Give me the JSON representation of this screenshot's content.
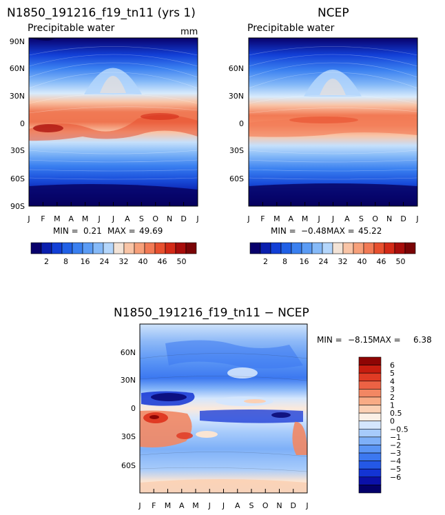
{
  "colors": {
    "seq_colorbar": [
      "#08006b",
      "#0a1fae",
      "#123fd6",
      "#2060e6",
      "#3a80f0",
      "#5b9cf5",
      "#86baf8",
      "#b4d6fb",
      "#f3e3d6",
      "#f9c4a6",
      "#f7a07a",
      "#f27a55",
      "#e8502f",
      "#d42a17",
      "#a80d0b",
      "#7a0406"
    ],
    "diff_colorbar": [
      "#04006a",
      "#0b10a8",
      "#1334d4",
      "#2458e6",
      "#3c78f0",
      "#5a95f5",
      "#7eb0f8",
      "#a7cbfb",
      "#d4e6fd",
      "#fbf0e6",
      "#fbd0b4",
      "#f8ab85",
      "#f28763",
      "#ec6244",
      "#e03b24",
      "#c71d0f",
      "#8e0504"
    ]
  },
  "panels": {
    "model": {
      "title": "N1850_191216_f19_tn11 (yrs 1)",
      "subtitle": "Precipitable water",
      "units": "mm",
      "min_label": "MIN =",
      "min_value": "0.21",
      "max_label": "MAX =",
      "max_value": "49.69",
      "y_ticks": [
        "90N",
        "60N",
        "30N",
        "0",
        "30S",
        "60S",
        "90S"
      ],
      "x_ticks": [
        "J",
        "F",
        "M",
        "A",
        "M",
        "J",
        "J",
        "A",
        "S",
        "O",
        "N",
        "D",
        "J"
      ],
      "colorbar_labels": [
        "2",
        "8",
        "16",
        "24",
        "32",
        "40",
        "46",
        "50"
      ]
    },
    "ncep": {
      "title": "NCEP",
      "subtitle": "Precipitable water",
      "min_label": "MIN =",
      "min_value": "−0.48",
      "max_label": "MAX =",
      "max_value": "45.22",
      "y_ticks": [
        "60N",
        "30N",
        "0",
        "30S",
        "60S"
      ],
      "x_ticks": [
        "J",
        "F",
        "M",
        "A",
        "M",
        "J",
        "J",
        "A",
        "S",
        "O",
        "N",
        "D",
        "J"
      ],
      "colorbar_labels": [
        "2",
        "8",
        "16",
        "24",
        "32",
        "40",
        "46",
        "50"
      ]
    },
    "diff": {
      "title": "N1850_191216_f19_tn11 − NCEP",
      "min_label": "MIN =",
      "min_value": "−8.15",
      "max_label": "MAX =",
      "max_value": "6.38",
      "y_ticks": [
        "60N",
        "30N",
        "0",
        "30S",
        "60S"
      ],
      "x_ticks": [
        "J",
        "F",
        "M",
        "A",
        "M",
        "J",
        "J",
        "A",
        "S",
        "O",
        "N",
        "D",
        "J"
      ],
      "colorbar_labels": [
        "6",
        "5",
        "4",
        "3",
        "2",
        "1",
        "0.5",
        "0",
        "−0.5",
        "−1",
        "−2",
        "−3",
        "−4",
        "−5",
        "−6"
      ]
    }
  },
  "chart_data": [
    {
      "type": "heatmap",
      "title": "N1850_191216_f19_tn11 (yrs 1)",
      "subtitle": "Precipitable water",
      "units": "mm",
      "x": "month (Jan–Jan)",
      "y": "latitude (90S–90N)",
      "min": 0.21,
      "max": 49.69,
      "contour_levels": [
        2,
        4,
        6,
        8,
        10,
        12,
        14,
        16,
        20,
        24,
        28,
        32,
        36,
        40,
        44,
        46,
        48,
        50
      ],
      "ylim": [
        -90,
        90
      ]
    },
    {
      "type": "heatmap",
      "title": "NCEP",
      "subtitle": "Precipitable water",
      "x": "month (Jan–Jan)",
      "y": "latitude (90S–90N)",
      "min": -0.48,
      "max": 45.22,
      "contour_levels": [
        2,
        4,
        6,
        8,
        10,
        12,
        14,
        16,
        20,
        24,
        28,
        32,
        36,
        40,
        44,
        46,
        48,
        50
      ],
      "ylim": [
        -90,
        90
      ]
    },
    {
      "type": "heatmap",
      "title": "N1850_191216_f19_tn11 − NCEP",
      "x": "month (Jan–Jan)",
      "y": "latitude (90S–90N)",
      "min": -8.15,
      "max": 6.38,
      "contour_levels": [
        -6,
        -5,
        -4,
        -3,
        -2,
        -1,
        -0.5,
        0,
        0.5,
        1,
        2,
        3,
        4,
        5,
        6
      ],
      "ylim": [
        -90,
        90
      ]
    }
  ]
}
